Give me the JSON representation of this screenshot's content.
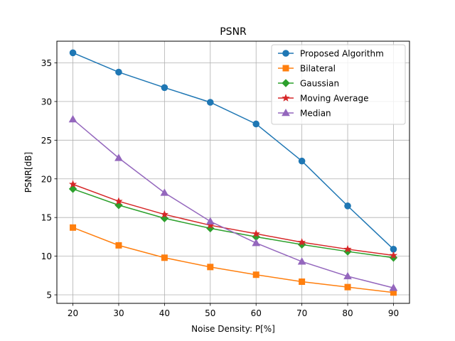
{
  "chart_data": {
    "type": "line",
    "title": "PSNR",
    "xlabel": "Noise Density: P[%]",
    "ylabel": "PSNR[dB]",
    "x": [
      20,
      30,
      40,
      50,
      60,
      70,
      80,
      90
    ],
    "xticks": [
      20,
      30,
      40,
      50,
      60,
      70,
      80,
      90
    ],
    "yticks": [
      5,
      10,
      15,
      20,
      25,
      30,
      35
    ],
    "xlim": [
      16.5,
      93.5
    ],
    "ylim": [
      3.9,
      37.8
    ],
    "grid": true,
    "legend_position": "top-right",
    "series": [
      {
        "name": "Proposed Algorithm",
        "color": "#1f77b4",
        "marker": "circle",
        "values": [
          36.3,
          33.8,
          31.8,
          29.9,
          27.1,
          22.3,
          16.5,
          10.9
        ]
      },
      {
        "name": "Bilateral",
        "color": "#ff7f0e",
        "marker": "square",
        "values": [
          13.7,
          11.4,
          9.8,
          8.6,
          7.6,
          6.7,
          6.0,
          5.3
        ]
      },
      {
        "name": "Gaussian",
        "color": "#2ca02c",
        "marker": "diamond",
        "values": [
          18.7,
          16.6,
          14.9,
          13.6,
          12.5,
          11.5,
          10.6,
          9.8
        ]
      },
      {
        "name": "Moving Average",
        "color": "#d62728",
        "marker": "star",
        "values": [
          19.3,
          17.1,
          15.4,
          14.0,
          12.9,
          11.8,
          10.9,
          10.1
        ]
      },
      {
        "name": "Median",
        "color": "#9467bd",
        "marker": "triangle",
        "values": [
          27.7,
          22.7,
          18.2,
          14.5,
          11.7,
          9.3,
          7.4,
          5.9
        ]
      }
    ]
  }
}
